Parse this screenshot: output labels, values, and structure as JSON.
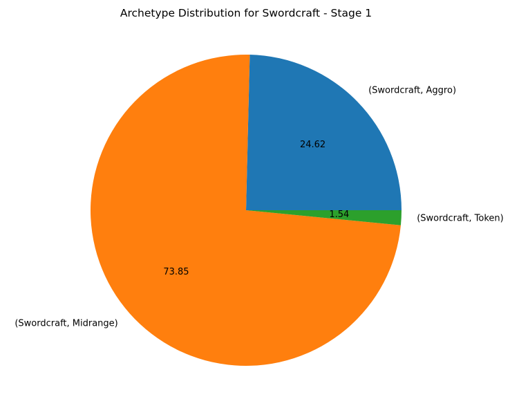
{
  "chart_data": {
    "type": "pie",
    "title": "Archetype Distribution for Swordcraft - Stage 1",
    "labels": [
      "(Swordcraft, Aggro)",
      "(Swordcraft, Midrange)",
      "(Swordcraft, Token)"
    ],
    "values": [
      24.62,
      73.85,
      1.54
    ],
    "value_labels": [
      "24.62",
      "73.85",
      "1.54"
    ],
    "colors": [
      "#1f77b4",
      "#ff7f0e",
      "#2ca02c"
    ],
    "start_angle_deg": 0,
    "direction": "counterclockwise"
  }
}
